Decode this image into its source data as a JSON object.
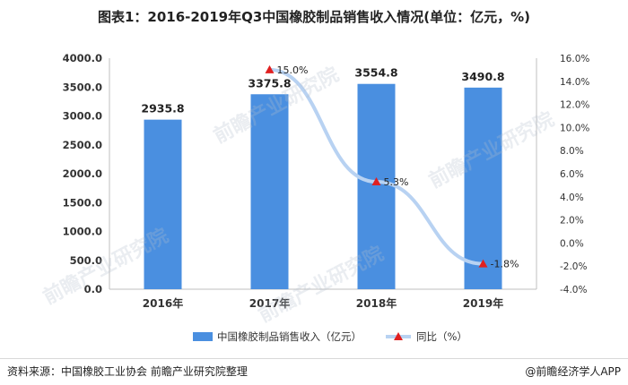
{
  "title": "图表1：2016-2019年Q3中国橡胶制品销售收入情况(单位：亿元，%)",
  "watermark": "前瞻产业研究院",
  "footer": {
    "source": "资料来源：中国橡胶工业协会 前瞻产业研究院整理",
    "copyright": "@前瞻经济学人APP"
  },
  "colors": {
    "bar": "#4a8fe0",
    "line": "#b8d2f2",
    "marker": "#e02020"
  },
  "chart_data": {
    "type": "bar",
    "categories": [
      "2016年",
      "2017年",
      "2018年",
      "2019年"
    ],
    "series": [
      {
        "name": "中国橡胶制品销售收入（亿元）",
        "type": "bar",
        "axis": "left",
        "values": [
          2935.8,
          3375.8,
          3554.8,
          3490.8
        ],
        "labels": [
          "2935.8",
          "3375.8",
          "3554.8",
          "3490.8"
        ]
      },
      {
        "name": "同比（%）",
        "type": "line",
        "axis": "right",
        "values": [
          null,
          15.0,
          5.3,
          -1.8
        ],
        "labels": [
          "",
          "15.0%",
          "5.3%",
          "-1.8%"
        ]
      }
    ],
    "y_left": {
      "min": 0,
      "max": 4000,
      "step": 500,
      "ticks": [
        "0.0",
        "500.0",
        "1000.0",
        "1500.0",
        "2000.0",
        "2500.0",
        "3000.0",
        "3500.0",
        "4000.0"
      ]
    },
    "y_right": {
      "min": -4,
      "max": 16,
      "step": 2,
      "ticks": [
        "-4.0%",
        "-2.0%",
        "0.0%",
        "2.0%",
        "4.0%",
        "6.0%",
        "8.0%",
        "10.0%",
        "12.0%",
        "14.0%",
        "16.0%"
      ]
    },
    "grid": false,
    "legend": "bottom"
  }
}
